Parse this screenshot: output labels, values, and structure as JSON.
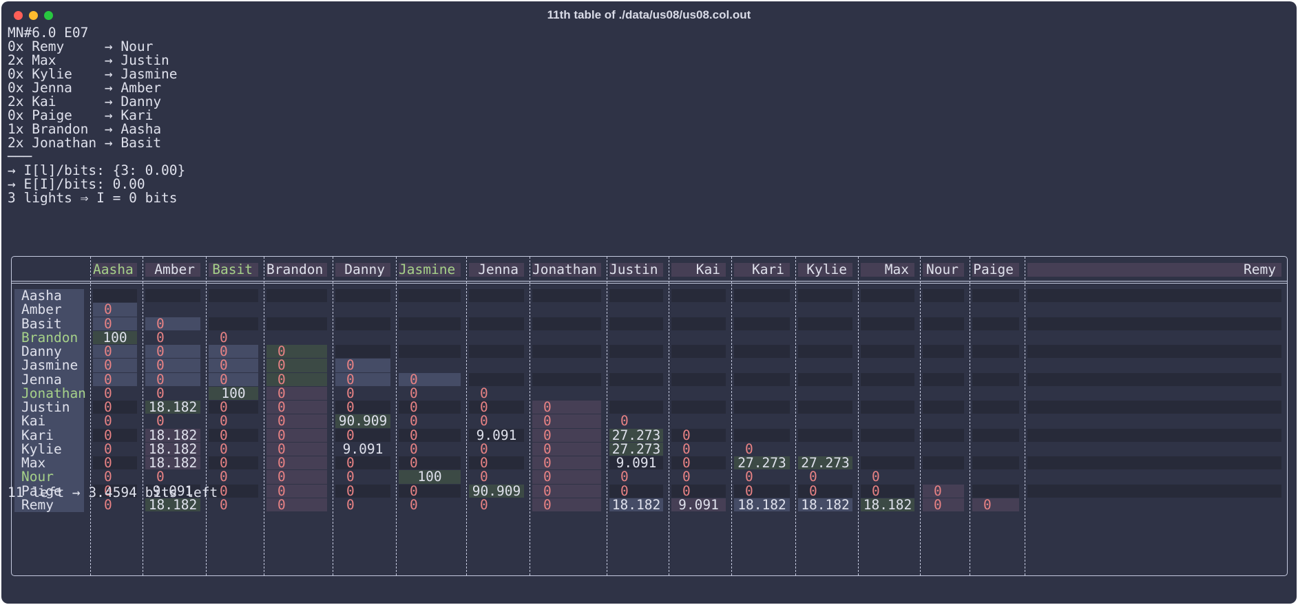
{
  "window": {
    "title": "11th table of ./data/us08/us08.col.out"
  },
  "terminal": {
    "header_lines": [
      "MN#6.0 E07",
      "0x Remy     → Nour",
      "2x Max      → Justin",
      "0x Kylie    → Jasmine",
      "0x Jenna    → Amber",
      "2x Kai      → Danny",
      "0x Paige    → Kari",
      "1x Brandon  → Aasha",
      "2x Jonathan → Basit",
      "───",
      "→ I[l]/bits: {3: 0.00}",
      "→ E[I]/bits: 0.00",
      "3 lights ⇒ I = 0 bits"
    ],
    "footer": "11 left → 3.4594 bits left"
  },
  "table": {
    "columns": [
      "Aasha",
      "Amber",
      "Basit",
      "Brandon",
      "Danny",
      "Jasmine",
      "Jenna",
      "Jonathan",
      "Justin",
      "Kai",
      "Kari",
      "Kylie",
      "Max",
      "Nour",
      "Paige",
      "Remy"
    ],
    "column_highlight": [
      true,
      false,
      true,
      false,
      false,
      true,
      false,
      false,
      false,
      false,
      false,
      false,
      false,
      false,
      false,
      false
    ],
    "rows": [
      {
        "name": "Aasha",
        "highlight": false
      },
      {
        "name": "Amber",
        "highlight": false
      },
      {
        "name": "Basit",
        "highlight": false
      },
      {
        "name": "Brandon",
        "highlight": true
      },
      {
        "name": "Danny",
        "highlight": false
      },
      {
        "name": "Jasmine",
        "highlight": false
      },
      {
        "name": "Jenna",
        "highlight": false
      },
      {
        "name": "Jonathan",
        "highlight": true
      },
      {
        "name": "Justin",
        "highlight": false
      },
      {
        "name": "Kai",
        "highlight": false
      },
      {
        "name": "Kari",
        "highlight": false
      },
      {
        "name": "Kylie",
        "highlight": false
      },
      {
        "name": "Max",
        "highlight": false
      },
      {
        "name": "Nour",
        "highlight": true
      },
      {
        "name": "Paige",
        "highlight": false
      },
      {
        "name": "Remy",
        "highlight": false
      }
    ],
    "cells": [
      [
        "",
        "",
        "",
        "",
        "",
        "",
        "",
        "",
        "",
        "",
        "",
        "",
        "",
        "",
        "",
        ""
      ],
      [
        "0",
        "",
        "",
        "",
        "",
        "",
        "",
        "",
        "",
        "",
        "",
        "",
        "",
        "",
        "",
        ""
      ],
      [
        "0",
        "0",
        "",
        "",
        "",
        "",
        "",
        "",
        "",
        "",
        "",
        "",
        "",
        "",
        "",
        ""
      ],
      [
        "100",
        "0",
        "0",
        "",
        "",
        "",
        "",
        "",
        "",
        "",
        "",
        "",
        "",
        "",
        "",
        ""
      ],
      [
        "0",
        "0",
        "0",
        "0",
        "",
        "",
        "",
        "",
        "",
        "",
        "",
        "",
        "",
        "",
        "",
        ""
      ],
      [
        "0",
        "0",
        "0",
        "0",
        "0",
        "",
        "",
        "",
        "",
        "",
        "",
        "",
        "",
        "",
        "",
        ""
      ],
      [
        "0",
        "0",
        "0",
        "0",
        "0",
        "0",
        "",
        "",
        "",
        "",
        "",
        "",
        "",
        "",
        "",
        ""
      ],
      [
        "0",
        "0",
        "100",
        "0",
        "0",
        "0",
        "0",
        "",
        "",
        "",
        "",
        "",
        "",
        "",
        "",
        ""
      ],
      [
        "0",
        "18.182",
        "0",
        "0",
        "0",
        "0",
        "0",
        "0",
        "",
        "",
        "",
        "",
        "",
        "",
        "",
        ""
      ],
      [
        "0",
        "0",
        "0",
        "0",
        "90.909",
        "0",
        "0",
        "0",
        "0",
        "",
        "",
        "",
        "",
        "",
        "",
        ""
      ],
      [
        "0",
        "18.182",
        "0",
        "0",
        "0",
        "0",
        "9.091",
        "0",
        "27.273",
        "0",
        "",
        "",
        "",
        "",
        "",
        ""
      ],
      [
        "0",
        "18.182",
        "0",
        "0",
        "9.091",
        "0",
        "0",
        "0",
        "27.273",
        "0",
        "0",
        "",
        "",
        "",
        "",
        ""
      ],
      [
        "0",
        "18.182",
        "0",
        "0",
        "0",
        "0",
        "0",
        "0",
        "9.091",
        "0",
        "27.273",
        "27.273",
        "",
        "",
        "",
        ""
      ],
      [
        "0",
        "0",
        "0",
        "0",
        "0",
        "100",
        "0",
        "0",
        "0",
        "0",
        "0",
        "0",
        "0",
        "",
        "",
        ""
      ],
      [
        "0",
        "9.091",
        "0",
        "0",
        "0",
        "0",
        "90.909",
        "0",
        "0",
        "0",
        "0",
        "0",
        "0",
        "0",
        "",
        ""
      ],
      [
        "0",
        "18.182",
        "0",
        "0",
        "0",
        "0",
        "0",
        "0",
        "18.182",
        "9.091",
        "18.182",
        "18.182",
        "18.182",
        "0",
        "0",
        ""
      ]
    ],
    "fills": [
      [
        "d",
        "d",
        "d",
        "d",
        "d",
        "d",
        "d",
        "d",
        "d",
        "d",
        "d",
        "d",
        "d",
        "d",
        "d",
        "d"
      ],
      [
        "b",
        "n",
        "n",
        "n",
        "n",
        "n",
        "n",
        "n",
        "n",
        "n",
        "n",
        "n",
        "n",
        "n",
        "n",
        "n"
      ],
      [
        "b",
        "b",
        "d",
        "d",
        "d",
        "d",
        "d",
        "d",
        "d",
        "d",
        "d",
        "d",
        "d",
        "d",
        "d",
        "d"
      ],
      [
        "g",
        "n",
        "n",
        "n",
        "n",
        "n",
        "n",
        "n",
        "n",
        "n",
        "n",
        "n",
        "n",
        "n",
        "n",
        "n"
      ],
      [
        "b",
        "b",
        "b",
        "g",
        "d",
        "d",
        "d",
        "d",
        "d",
        "d",
        "d",
        "d",
        "d",
        "d",
        "d",
        "d"
      ],
      [
        "b",
        "b",
        "b",
        "g",
        "b",
        "n",
        "n",
        "n",
        "n",
        "n",
        "n",
        "n",
        "n",
        "n",
        "n",
        "n"
      ],
      [
        "b",
        "b",
        "b",
        "g",
        "b",
        "b",
        "d",
        "d",
        "d",
        "d",
        "d",
        "d",
        "d",
        "d",
        "d",
        "d"
      ],
      [
        "n",
        "n",
        "g",
        "p",
        "n",
        "n",
        "n",
        "n",
        "n",
        "n",
        "n",
        "n",
        "n",
        "n",
        "n",
        "n"
      ],
      [
        "d",
        "g",
        "d",
        "p",
        "d",
        "d",
        "d",
        "p",
        "d",
        "d",
        "d",
        "d",
        "d",
        "d",
        "d",
        "d"
      ],
      [
        "n",
        "n",
        "n",
        "p",
        "g",
        "n",
        "n",
        "p",
        "n",
        "n",
        "n",
        "n",
        "n",
        "n",
        "n",
        "n"
      ],
      [
        "d",
        "p",
        "d",
        "p",
        "d",
        "d",
        "d",
        "p",
        "g",
        "d",
        "d",
        "d",
        "d",
        "d",
        "d",
        "d"
      ],
      [
        "n",
        "p",
        "n",
        "p",
        "n",
        "n",
        "n",
        "p",
        "g",
        "n",
        "n",
        "n",
        "n",
        "n",
        "n",
        "n"
      ],
      [
        "d",
        "p",
        "d",
        "p",
        "d",
        "d",
        "d",
        "p",
        "d",
        "d",
        "g",
        "g",
        "d",
        "d",
        "d",
        "d"
      ],
      [
        "n",
        "n",
        "n",
        "p",
        "n",
        "g",
        "n",
        "p",
        "n",
        "n",
        "n",
        "n",
        "n",
        "n",
        "n",
        "n"
      ],
      [
        "d",
        "d",
        "d",
        "p",
        "d",
        "d",
        "g",
        "p",
        "d",
        "d",
        "d",
        "d",
        "d",
        "p",
        "d",
        "d"
      ],
      [
        "n",
        "g",
        "n",
        "p",
        "n",
        "n",
        "n",
        "p",
        "b",
        "p",
        "b",
        "b",
        "g",
        "p",
        "p",
        "n"
      ]
    ],
    "colors": {
      "fill_dark": "#272a39",
      "fill_blue": "#454c66",
      "fill_green": "#3c4a45",
      "fill_purple": "#463f55",
      "header_bg": "#463f55",
      "header_text": "#dfe1ec",
      "highlight_text": "#a6d189",
      "zero_text": "#e78284",
      "value_text": "#dfe1ec",
      "border": "#c6cbe0"
    }
  }
}
